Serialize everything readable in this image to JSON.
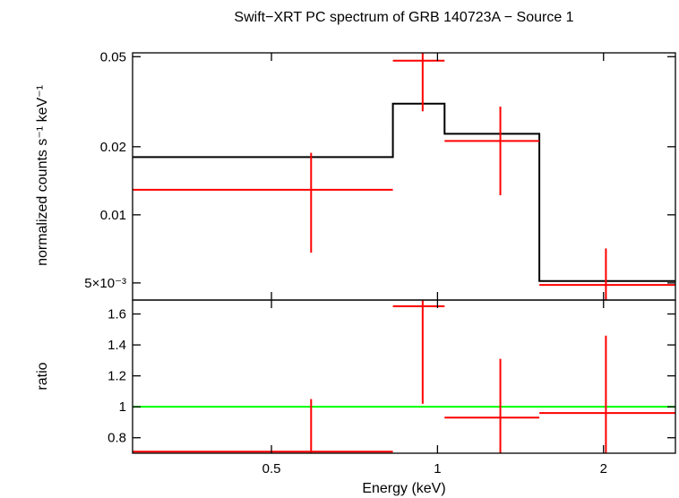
{
  "chart_data": {
    "type": "line",
    "title": "Swift−XRT PC spectrum of GRB 140723A − Source 1",
    "xlabel": "Energy (keV)",
    "x_scale": "log",
    "xlim": [
      0.28,
      2.7
    ],
    "x_ticks": [
      {
        "value": 0.5,
        "label": "0.5"
      },
      {
        "value": 1,
        "label": "1"
      },
      {
        "value": 2,
        "label": "2"
      }
    ],
    "colors": {
      "data": "#ff0000",
      "model": "#000000",
      "unity": "#00ff00",
      "axes": "#000000"
    },
    "panels": [
      {
        "name": "spectrum",
        "ylabel": "normalized counts s⁻¹ keV⁻¹",
        "y_scale": "log",
        "ylim": [
          0.0042,
          0.052
        ],
        "y_ticks": [
          {
            "value": 0.05,
            "label": "0.05"
          },
          {
            "value": 0.02,
            "label": "0.02"
          },
          {
            "value": 0.01,
            "label": "0.01"
          },
          {
            "value": 0.005,
            "label": "5×10⁻³"
          }
        ],
        "data_points": [
          {
            "x": 0.59,
            "xlo": 0.28,
            "xhi": 0.83,
            "y": 0.0129,
            "ylo": 0.0068,
            "yhi": 0.0188
          },
          {
            "x": 0.94,
            "xlo": 0.83,
            "xhi": 1.03,
            "y": 0.048,
            "ylo": 0.0287,
            "yhi": 0.056
          },
          {
            "x": 1.3,
            "xlo": 1.03,
            "xhi": 1.53,
            "y": 0.0212,
            "ylo": 0.0122,
            "yhi": 0.0301
          },
          {
            "x": 2.02,
            "xlo": 1.53,
            "xhi": 2.7,
            "y": 0.0049,
            "ylo": 0.0039,
            "yhi": 0.0071
          }
        ],
        "model_steps": [
          {
            "xlo": 0.28,
            "xhi": 0.83,
            "y": 0.018
          },
          {
            "xlo": 0.83,
            "xhi": 1.03,
            "y": 0.031
          },
          {
            "xlo": 1.03,
            "xhi": 1.53,
            "y": 0.0228
          },
          {
            "xlo": 1.53,
            "xhi": 2.7,
            "y": 0.0051
          }
        ]
      },
      {
        "name": "ratio",
        "ylabel": "ratio",
        "y_scale": "linear",
        "ylim": [
          0.7,
          1.69
        ],
        "y_ticks": [
          {
            "value": 0.8,
            "label": "0.8"
          },
          {
            "value": 1,
            "label": "1"
          },
          {
            "value": 1.2,
            "label": "1.2"
          },
          {
            "value": 1.4,
            "label": "1.4"
          },
          {
            "value": 1.6,
            "label": "1.6"
          }
        ],
        "data_points": [
          {
            "x": 0.59,
            "xlo": 0.28,
            "xhi": 0.83,
            "y": 0.71,
            "ylo": 0.7,
            "yhi": 1.05
          },
          {
            "x": 0.94,
            "xlo": 0.83,
            "xhi": 1.03,
            "y": 1.65,
            "ylo": 1.02,
            "yhi": 1.69
          },
          {
            "x": 1.3,
            "xlo": 1.03,
            "xhi": 1.53,
            "y": 0.93,
            "ylo": 0.7,
            "yhi": 1.31
          },
          {
            "x": 2.02,
            "xlo": 1.53,
            "xhi": 2.7,
            "y": 0.96,
            "ylo": 0.7,
            "yhi": 1.46
          }
        ],
        "reference_line": {
          "y": 1
        }
      }
    ]
  }
}
